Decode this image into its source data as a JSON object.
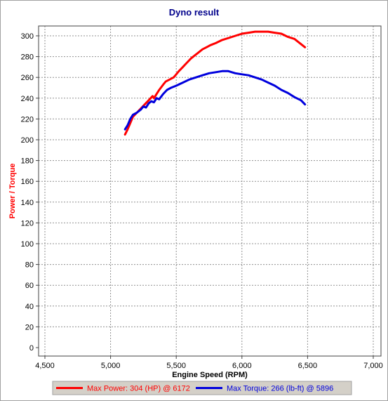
{
  "chart_data": {
    "type": "line",
    "title": "Dyno result",
    "xlabel": "Engine Speed (RPM)",
    "ylabel": "Power / Torque",
    "xlim": [
      4500,
      7000
    ],
    "ylim": [
      0,
      310
    ],
    "xticks": [
      "4,500",
      "5,000",
      "5,500",
      "6,000",
      "6,500",
      "7,000"
    ],
    "yticks": [
      "0",
      "20",
      "40",
      "60",
      "80",
      "100",
      "120",
      "140",
      "160",
      "180",
      "200",
      "220",
      "240",
      "260",
      "280",
      "300"
    ],
    "grid": true,
    "legend_position": "bottom",
    "series": [
      {
        "name": "Max Power: 304 (HP) @ 6172",
        "color": "#ff0000",
        "x": [
          5110,
          5130,
          5150,
          5170,
          5200,
          5230,
          5260,
          5290,
          5320,
          5330,
          5350,
          5370,
          5400,
          5420,
          5450,
          5480,
          5500,
          5520,
          5550,
          5580,
          5610,
          5640,
          5670,
          5700,
          5730,
          5760,
          5800,
          5850,
          5900,
          5950,
          6000,
          6050,
          6100,
          6150,
          6172,
          6200,
          6250,
          6300,
          6350,
          6400,
          6450,
          6480
        ],
        "y": [
          205,
          210,
          216,
          222,
          226,
          230,
          234,
          238,
          242,
          240,
          244,
          248,
          253,
          256,
          258,
          260,
          263,
          266,
          270,
          274,
          278,
          281,
          284,
          287,
          289,
          291,
          293,
          296,
          298,
          300,
          302,
          303,
          304,
          304,
          304,
          304,
          303,
          302,
          299,
          297,
          292,
          289
        ]
      },
      {
        "name": "Max Torque: 266 (lb-ft) @ 5896",
        "color": "#0000dd",
        "x": [
          5110,
          5130,
          5150,
          5170,
          5200,
          5230,
          5250,
          5270,
          5290,
          5310,
          5330,
          5350,
          5370,
          5400,
          5430,
          5460,
          5500,
          5550,
          5600,
          5650,
          5700,
          5750,
          5800,
          5850,
          5896,
          5950,
          6000,
          6050,
          6100,
          6150,
          6200,
          6250,
          6300,
          6350,
          6400,
          6450,
          6480
        ],
        "y": [
          210,
          214,
          220,
          224,
          226,
          229,
          232,
          231,
          235,
          237,
          236,
          240,
          239,
          244,
          248,
          250,
          252,
          255,
          258,
          260,
          262,
          264,
          265,
          266,
          266,
          264,
          263,
          262,
          260,
          258,
          255,
          252,
          248,
          245,
          241,
          238,
          234
        ]
      }
    ]
  }
}
